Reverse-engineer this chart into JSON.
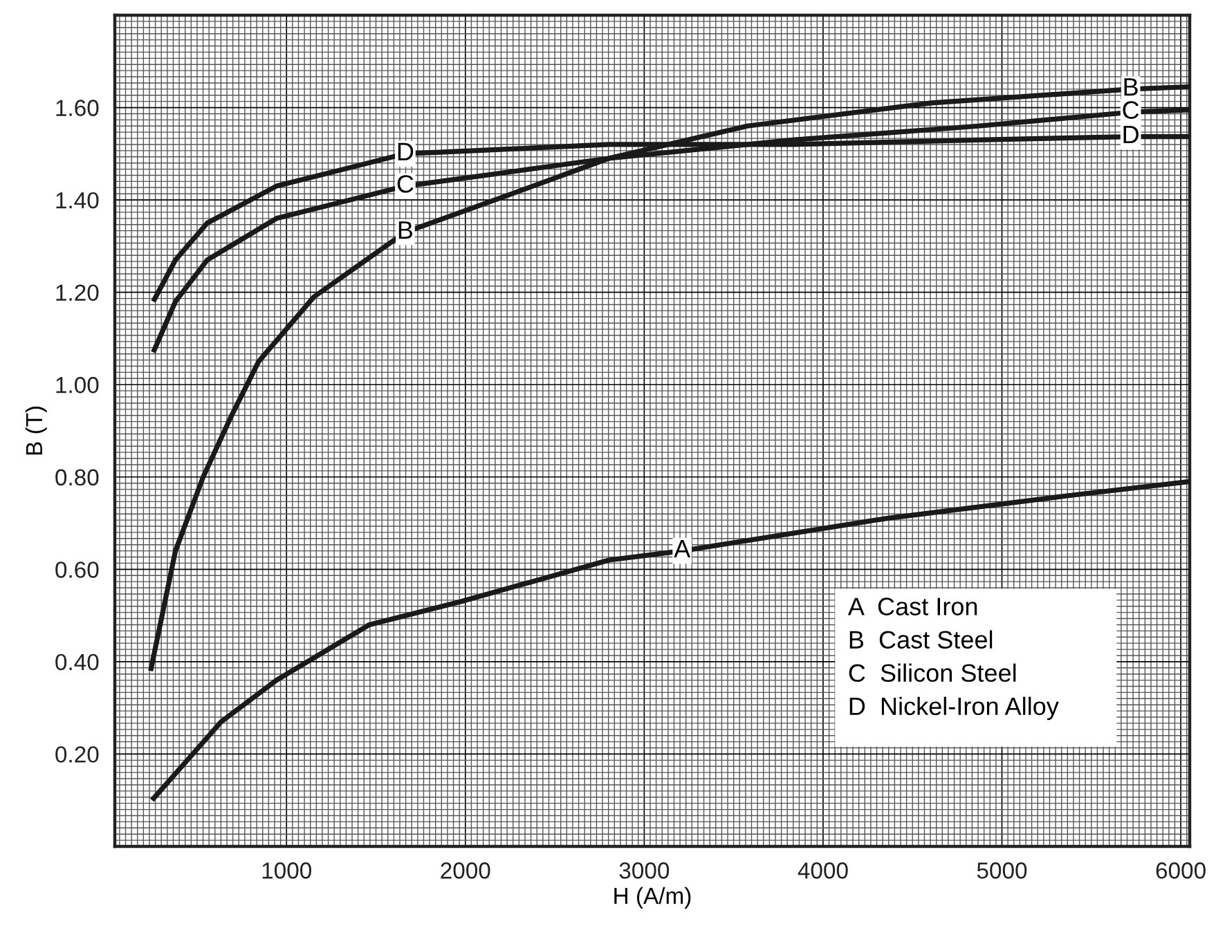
{
  "chart_data": {
    "type": "line",
    "xlabel": "H (A/m)",
    "ylabel": "B (T)",
    "xlim": [
      40,
      6050
    ],
    "ylim": [
      0,
      1.8
    ],
    "xticks": [
      1000,
      2000,
      3000,
      4000,
      5000,
      6000
    ],
    "yticks": [
      {
        "value": 0.2,
        "label": "0.20"
      },
      {
        "value": 0.4,
        "label": "0.40"
      },
      {
        "value": 0.6,
        "label": "0.60"
      },
      {
        "value": 0.8,
        "label": "0.80"
      },
      {
        "value": 1.0,
        "label": "1.00"
      },
      {
        "value": 1.2,
        "label": "1.20"
      },
      {
        "value": 1.4,
        "label": "1.40"
      },
      {
        "value": 1.6,
        "label": "1.60"
      }
    ],
    "grid": true,
    "marker": "none",
    "line_style": "solid",
    "series": [
      {
        "color": "#1a1a1a",
        "x": [
          248,
          635,
          944,
          1463,
          1974,
          2802,
          3212,
          4350,
          5379,
          6050
        ],
        "values": [
          0.1,
          0.27,
          0.36,
          0.48,
          0.53,
          0.62,
          0.64,
          0.71,
          0.76,
          0.79
        ]
      },
      {
        "color": "#1a1a1a",
        "x": [
          240,
          379,
          534,
          689,
          844,
          1153,
          1664,
          2237,
          2802,
          3576,
          4605,
          5720,
          6050
        ],
        "values": [
          0.38,
          0.64,
          0.8,
          0.93,
          1.05,
          1.19,
          1.33,
          1.41,
          1.49,
          1.56,
          1.61,
          1.64,
          1.645
        ]
      },
      {
        "color": "#1a1a1a",
        "x": [
          255,
          379,
          557,
          944,
          1664,
          2237,
          2802,
          3831,
          4868,
          5720,
          6050
        ],
        "values": [
          1.07,
          1.18,
          1.27,
          1.36,
          1.43,
          1.46,
          1.49,
          1.53,
          1.56,
          1.59,
          1.595
        ]
      },
      {
        "color": "#1a1a1a",
        "x": [
          255,
          379,
          557,
          944,
          1664,
          2237,
          2802,
          3831,
          4868,
          5720,
          6050
        ],
        "values": [
          1.18,
          1.27,
          1.35,
          1.43,
          1.5,
          1.51,
          1.52,
          1.52,
          1.53,
          1.537,
          1.537
        ]
      }
    ],
    "annotations": [
      {
        "text": "A",
        "x": 3212,
        "y": 0.64
      },
      {
        "text": "B",
        "x": 1664,
        "y": 1.33
      },
      {
        "text": "C",
        "x": 1664,
        "y": 1.43
      },
      {
        "text": "D",
        "x": 1664,
        "y": 1.5
      },
      {
        "text": "B",
        "x": 5720,
        "y": 1.64
      },
      {
        "text": "C",
        "x": 5720,
        "y": 1.59
      },
      {
        "text": "D",
        "x": 5720,
        "y": 1.537
      },
      "A  Cast Iron",
      "B  Cast Steel",
      "C  Silicon Steel",
      "D  Nickel-Iron Alloy"
    ]
  }
}
